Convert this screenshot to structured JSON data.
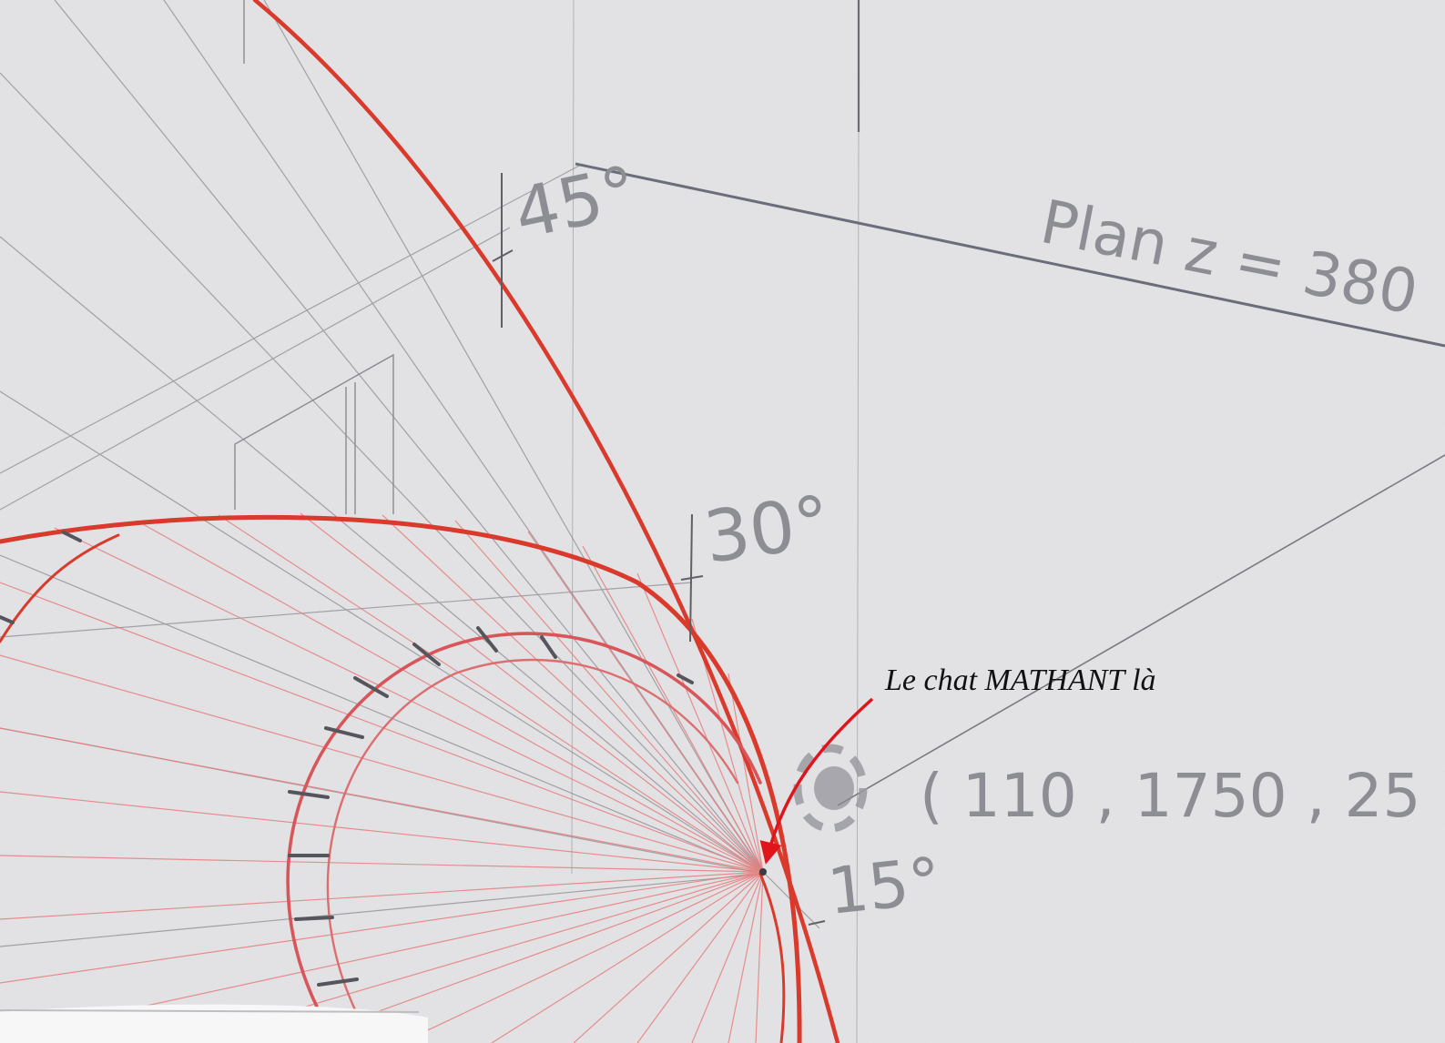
{
  "labels": {
    "angle_45": "45°",
    "angle_30": "30°",
    "angle_15": "15°",
    "plane": "Plan  z = 380",
    "point_coords": "( 110 , 1750 , 25 )"
  },
  "annotation": {
    "text": "Le chat MATHANT là"
  },
  "colors": {
    "paper": "#e4e4e6",
    "pencil": "#6e6e76",
    "pencil_light": "#9a9aa2",
    "red_ink": "#d93a2c",
    "red_light": "#ea8a88",
    "arrow": "#e0151c"
  }
}
